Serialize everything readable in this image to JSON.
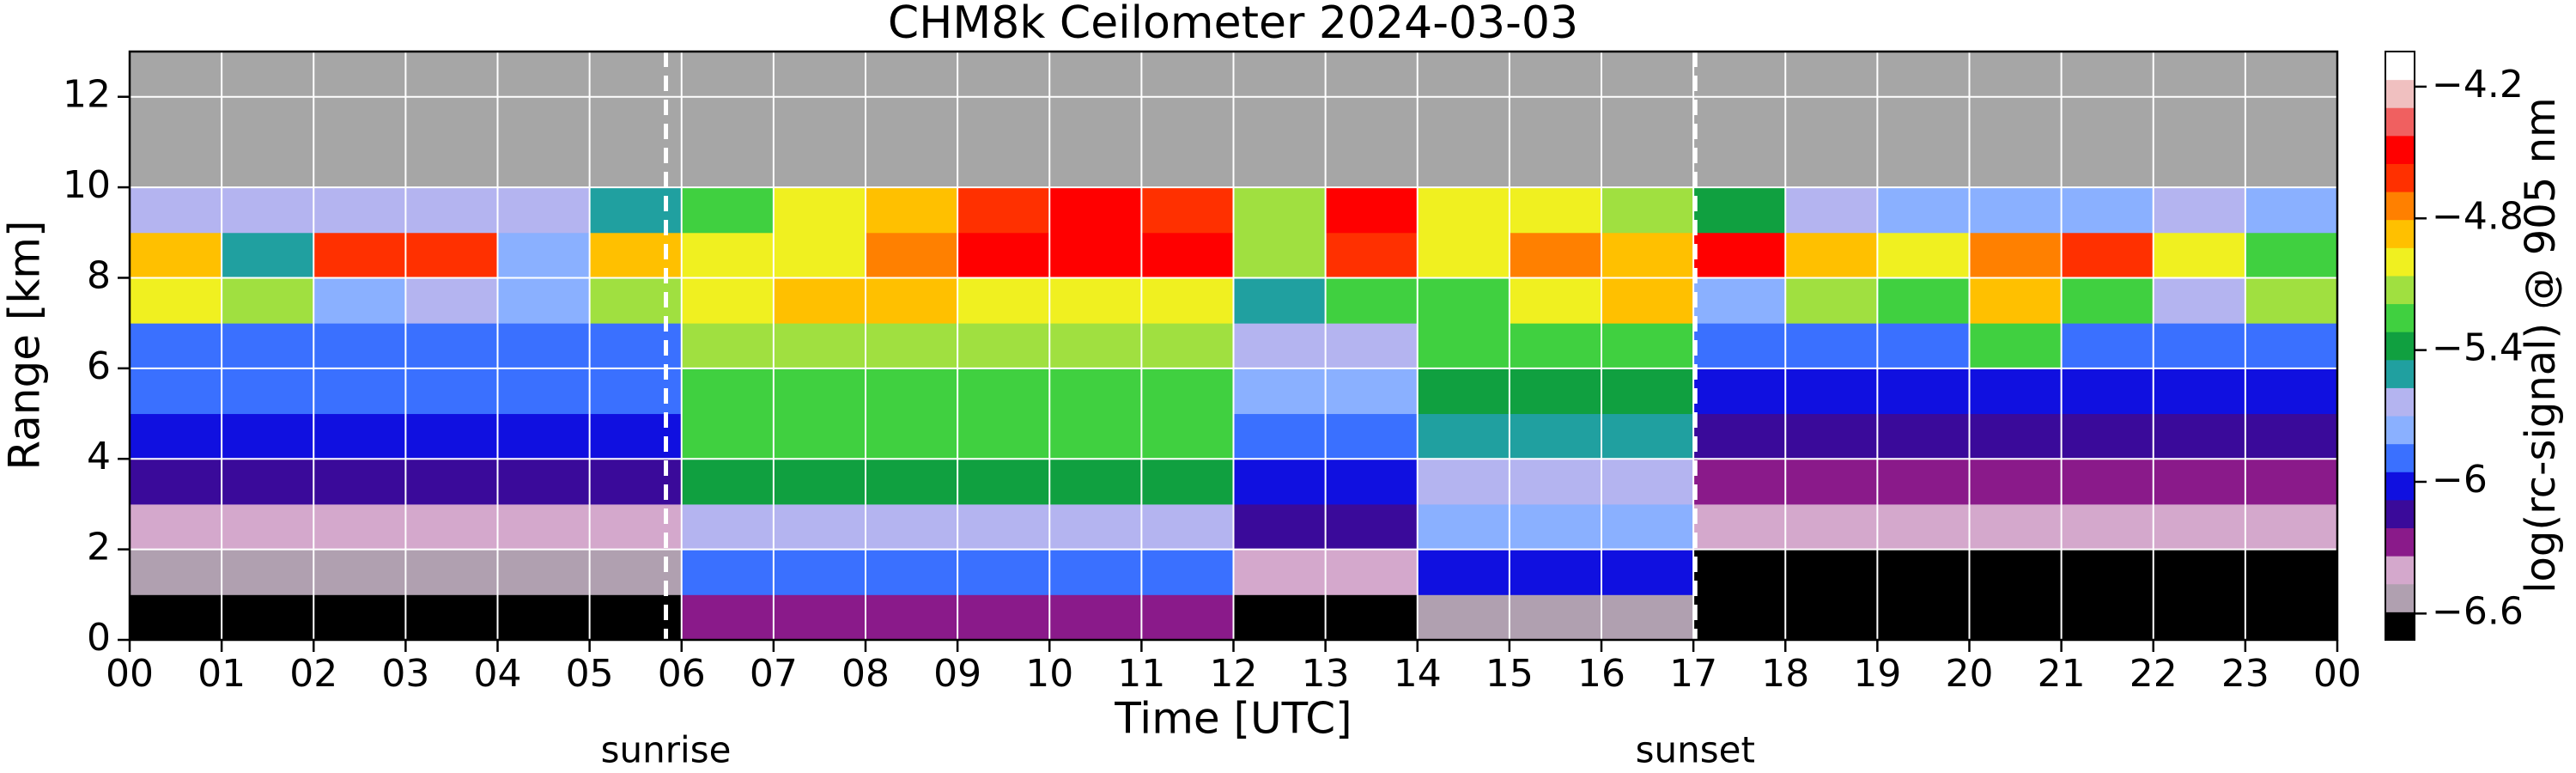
{
  "chart_data": {
    "type": "heatmap",
    "title": "CHM8k Ceilometer 2024-03-03",
    "xlabel": "Time [UTC]",
    "ylabel": "Range [km]",
    "colorbar_label": "log(rc-signal) @ 905 nm",
    "facecolor": "#a6a6a6",
    "grid": true,
    "xlim": [
      0,
      24
    ],
    "ylim": [
      0,
      13
    ],
    "xticks": [
      {
        "value": 0,
        "label": "00"
      },
      {
        "value": 1,
        "label": "01"
      },
      {
        "value": 2,
        "label": "02"
      },
      {
        "value": 3,
        "label": "03"
      },
      {
        "value": 4,
        "label": "04"
      },
      {
        "value": 5,
        "label": "05"
      },
      {
        "value": 6,
        "label": "06"
      },
      {
        "value": 7,
        "label": "07"
      },
      {
        "value": 8,
        "label": "08"
      },
      {
        "value": 9,
        "label": "09"
      },
      {
        "value": 10,
        "label": "10"
      },
      {
        "value": 11,
        "label": "11"
      },
      {
        "value": 12,
        "label": "12"
      },
      {
        "value": 13,
        "label": "13"
      },
      {
        "value": 14,
        "label": "14"
      },
      {
        "value": 15,
        "label": "15"
      },
      {
        "value": 16,
        "label": "16"
      },
      {
        "value": 17,
        "label": "17"
      },
      {
        "value": 18,
        "label": "18"
      },
      {
        "value": 19,
        "label": "19"
      },
      {
        "value": 20,
        "label": "20"
      },
      {
        "value": 21,
        "label": "21"
      },
      {
        "value": 22,
        "label": "22"
      },
      {
        "value": 23,
        "label": "23"
      },
      {
        "value": 24,
        "label": "00"
      }
    ],
    "yticks": [
      0,
      2,
      4,
      6,
      8,
      10,
      12
    ],
    "clim": [
      -6.72,
      -4.04
    ],
    "cticks": [
      {
        "value": -4.2,
        "label": "−4.2"
      },
      {
        "value": -4.8,
        "label": "−4.8"
      },
      {
        "value": -5.4,
        "label": "−5.4"
      },
      {
        "value": -6,
        "label": "−6"
      },
      {
        "value": -6.6,
        "label": "−6.6"
      }
    ],
    "colormap": [
      "#000000",
      "#b0a0b0",
      "#d4a8cc",
      "#8a1a8a",
      "#3a0a9a",
      "#1010e0",
      "#3a70ff",
      "#8ab0ff",
      "#b4b4f0",
      "#20a0a0",
      "#10a040",
      "#40d040",
      "#a0e040",
      "#f0f020",
      "#ffc000",
      "#ff8000",
      "#ff3000",
      "#ff0000",
      "#f06060",
      "#f0c0c0",
      "#ffffff"
    ],
    "xbins": [
      0,
      1,
      2,
      3,
      4,
      5,
      6,
      7,
      8,
      9,
      10,
      11,
      12,
      13,
      14,
      15,
      16,
      17,
      18,
      19,
      20,
      21,
      22,
      23,
      24
    ],
    "ybins": [
      0,
      1,
      2,
      3,
      4,
      5,
      6,
      7,
      8,
      9,
      10
    ],
    "z": [
      [
        -6.7,
        -6.7,
        -6.7,
        -6.7,
        -6.7,
        -6.7,
        -6.3,
        -6.3,
        -6.3,
        -6.3,
        -6.3,
        -6.3,
        -6.6,
        -6.6,
        -6.5,
        -6.5,
        -6.5,
        -6.75,
        -6.75,
        -6.75,
        -6.75,
        -6.75,
        -6.75,
        -6.75
      ],
      [
        -6.55,
        -6.55,
        -6.55,
        -6.55,
        -6.55,
        -6.55,
        -5.9,
        -5.9,
        -5.9,
        -5.9,
        -5.9,
        -5.9,
        -6.4,
        -6.4,
        -6.0,
        -6.0,
        -6.0,
        -6.6,
        -6.6,
        -6.6,
        -6.6,
        -6.6,
        -6.6,
        -6.6
      ],
      [
        -6.4,
        -6.4,
        -6.4,
        -6.4,
        -6.4,
        -6.4,
        -5.6,
        -5.6,
        -5.6,
        -5.6,
        -5.6,
        -5.6,
        -6.2,
        -6.2,
        -5.8,
        -5.8,
        -5.8,
        -6.45,
        -6.45,
        -6.45,
        -6.45,
        -6.45,
        -6.45,
        -6.45
      ],
      [
        -6.2,
        -6.2,
        -6.2,
        -6.2,
        -6.2,
        -6.2,
        -5.4,
        -5.4,
        -5.4,
        -5.4,
        -5.4,
        -5.4,
        -6.0,
        -6.0,
        -5.6,
        -5.6,
        -5.6,
        -6.3,
        -6.3,
        -6.3,
        -6.3,
        -6.3,
        -6.3,
        -6.3
      ],
      [
        -6.05,
        -6.05,
        -6.05,
        -6.05,
        -6.05,
        -6.05,
        -5.3,
        -5.3,
        -5.3,
        -5.3,
        -5.3,
        -5.3,
        -5.9,
        -5.9,
        -5.5,
        -5.5,
        -5.5,
        -6.1,
        -6.1,
        -6.1,
        -6.1,
        -6.1,
        -6.1,
        -6.1
      ],
      [
        -5.95,
        -5.95,
        -5.95,
        -5.95,
        -5.95,
        -5.95,
        -5.2,
        -5.2,
        -5.2,
        -5.2,
        -5.2,
        -5.2,
        -5.8,
        -5.8,
        -5.4,
        -5.4,
        -5.4,
        -6.0,
        -6.0,
        -6.0,
        -6.0,
        -6.0,
        -6.0,
        -6.0
      ],
      [
        -5.9,
        -5.9,
        -5.9,
        -5.9,
        -5.9,
        -5.9,
        -5.1,
        -5.1,
        -5.1,
        -5.1,
        -5.1,
        -5.1,
        -5.6,
        -5.6,
        -5.3,
        -5.3,
        -5.3,
        -5.95,
        -5.95,
        -5.95,
        -5.3,
        -5.95,
        -5.95,
        -5.95
      ],
      [
        -5.0,
        -5.1,
        -5.7,
        -5.6,
        -5.8,
        -5.1,
        -5.0,
        -4.9,
        -4.9,
        -5.0,
        -5.0,
        -5.0,
        -5.5,
        -5.3,
        -5.2,
        -5.0,
        -4.9,
        -5.7,
        -5.1,
        -5.3,
        -4.9,
        -5.2,
        -5.6,
        -5.1
      ],
      [
        -4.9,
        -5.5,
        -4.6,
        -4.6,
        -5.7,
        -4.9,
        -5.0,
        -5.0,
        -4.7,
        -4.5,
        -4.5,
        -4.5,
        -5.1,
        -4.6,
        -5.0,
        -4.8,
        -4.9,
        -4.5,
        -4.9,
        -5.0,
        -4.7,
        -4.6,
        -5.0,
        -5.2
      ],
      [
        -5.6,
        -5.6,
        -5.6,
        -5.6,
        -5.6,
        -5.5,
        -5.2,
        -5.0,
        -4.9,
        -4.6,
        -4.5,
        -4.6,
        -5.1,
        -4.5,
        -5.0,
        -5.0,
        -5.1,
        -5.4,
        -5.6,
        -5.7,
        -5.7,
        -5.7,
        -5.6,
        -5.7
      ]
    ],
    "annotations": [
      {
        "text": "sunrise",
        "x": 5.83
      },
      {
        "text": "sunset",
        "x": 17.02
      }
    ]
  }
}
